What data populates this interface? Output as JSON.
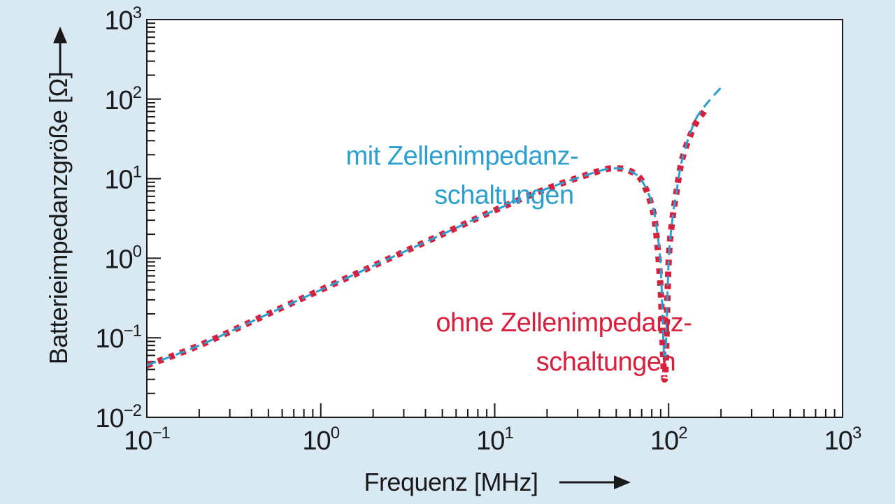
{
  "chart_data": {
    "type": "line",
    "xlabel": "Frequenz [MHz]",
    "ylabel": "Batterieimpedanzgröße [Ω]",
    "xscale": "log",
    "yscale": "log",
    "xlim": [
      0.1,
      1000
    ],
    "ylim": [
      0.01,
      1000
    ],
    "grid": false,
    "x_ticks": [
      {
        "base": "10",
        "exp": "−1",
        "value": 0.1
      },
      {
        "base": "10",
        "exp": "0",
        "value": 1
      },
      {
        "base": "10",
        "exp": "1",
        "value": 10
      },
      {
        "base": "10",
        "exp": "2",
        "value": 100
      },
      {
        "base": "10",
        "exp": "3",
        "value": 1000
      }
    ],
    "y_ticks": [
      {
        "base": "10",
        "exp": "−2",
        "value": 0.01
      },
      {
        "base": "10",
        "exp": "−1",
        "value": 0.1
      },
      {
        "base": "10",
        "exp": "0",
        "value": 1
      },
      {
        "base": "10",
        "exp": "1",
        "value": 10
      },
      {
        "base": "10",
        "exp": "2",
        "value": 100
      },
      {
        "base": "10",
        "exp": "3",
        "value": 1000
      }
    ],
    "series": [
      {
        "name": "mit Zellenimpedanz-schaltungen",
        "color": "#2a9fd0",
        "style": "dashed",
        "x": [
          0.1,
          0.2,
          0.5,
          1,
          2,
          5,
          10,
          20,
          40,
          50,
          60,
          70,
          80,
          85,
          90,
          95,
          100,
          105,
          110,
          120,
          140,
          160,
          200
        ],
        "y": [
          0.045,
          0.08,
          0.2,
          0.4,
          0.8,
          2.0,
          4.0,
          7.5,
          12.5,
          13.5,
          12.5,
          9.5,
          5.0,
          2.5,
          0.8,
          0.05,
          0.9,
          3.0,
          6.0,
          18.0,
          50.0,
          80.0,
          140.0
        ]
      },
      {
        "name": "ohne Zellenimpedanz-schaltungen",
        "color": "#d81f3c",
        "style": "dotted-squares",
        "x": [
          0.1,
          0.2,
          0.5,
          1,
          2,
          5,
          10,
          20,
          40,
          50,
          60,
          70,
          80,
          85,
          90,
          95,
          100,
          105,
          110,
          120,
          140,
          160
        ],
        "y": [
          0.045,
          0.08,
          0.2,
          0.4,
          0.8,
          2.0,
          4.0,
          7.5,
          12.5,
          13.5,
          12.5,
          9.5,
          4.5,
          2.0,
          0.4,
          0.03,
          0.9,
          3.0,
          6.0,
          18.0,
          45.0,
          70.0
        ]
      }
    ],
    "annotations": [
      {
        "lines": [
          "mit Zellenimpedanz-",
          "schaltungen"
        ],
        "color": "#2a9fd0",
        "x": 6.5,
        "y": 15
      },
      {
        "lines": [
          "ohne Zellenimpedanz-",
          "schaltungen"
        ],
        "color": "#d81f3c",
        "x": 25,
        "y": 0.12
      }
    ]
  }
}
